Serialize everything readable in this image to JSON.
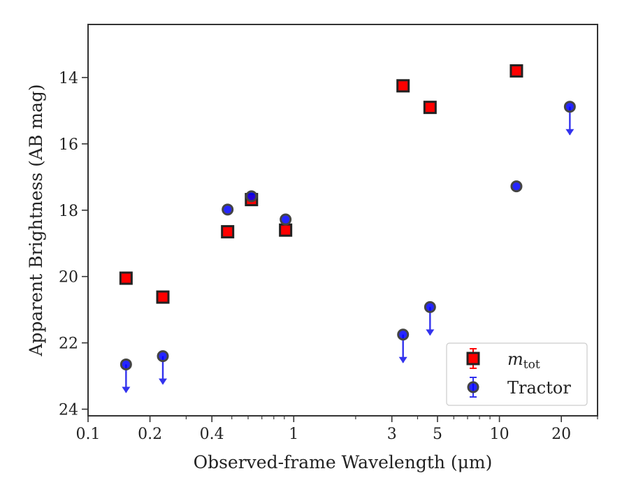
{
  "chart_data": {
    "type": "scatter",
    "xlabel": "Observed-frame Wavelength (μm)",
    "ylabel": "Apparent Brightness (AB mag)",
    "xscale": "log",
    "xlim": [
      0.1,
      30
    ],
    "ylim": [
      24.2,
      12.4
    ],
    "y_inverted": true,
    "grid": false,
    "legend_position": "lower-right",
    "x_ticks": [
      0.1,
      0.2,
      0.4,
      1,
      3,
      5,
      10,
      20
    ],
    "x_tick_labels": [
      "0.1",
      "0.2",
      "0.4",
      "1",
      "3",
      "5",
      "10",
      "20"
    ],
    "y_ticks": [
      14,
      16,
      18,
      20,
      22,
      24
    ],
    "y_tick_labels": [
      "14",
      "16",
      "18",
      "20",
      "22",
      "24"
    ],
    "series": [
      {
        "name": "m_tot",
        "legend_label_main": "m",
        "legend_label_sub": "tot",
        "marker": "square",
        "color": "#ff0000",
        "edge_color": "#222222",
        "points": [
          {
            "x": 0.153,
            "y": 20.05
          },
          {
            "x": 0.231,
            "y": 20.62
          },
          {
            "x": 0.477,
            "y": 18.65
          },
          {
            "x": 0.623,
            "y": 17.68
          },
          {
            "x": 0.913,
            "y": 18.6
          },
          {
            "x": 3.4,
            "y": 14.25
          },
          {
            "x": 4.6,
            "y": 14.9
          },
          {
            "x": 12.1,
            "y": 13.8
          }
        ]
      },
      {
        "name": "Tractor",
        "marker": "circle",
        "color": "#0000ff",
        "edge_color": "#444444",
        "points": [
          {
            "x": 0.153,
            "y": 22.65,
            "upper_limit": true
          },
          {
            "x": 0.231,
            "y": 22.4,
            "upper_limit": true
          },
          {
            "x": 0.477,
            "y": 17.98
          },
          {
            "x": 0.623,
            "y": 17.58
          },
          {
            "x": 0.913,
            "y": 18.28
          },
          {
            "x": 3.4,
            "y": 21.75,
            "upper_limit": true
          },
          {
            "x": 4.6,
            "y": 20.92,
            "upper_limit": true
          },
          {
            "x": 12.1,
            "y": 17.28
          },
          {
            "x": 22.0,
            "y": 14.88,
            "upper_limit": true
          }
        ]
      }
    ]
  }
}
